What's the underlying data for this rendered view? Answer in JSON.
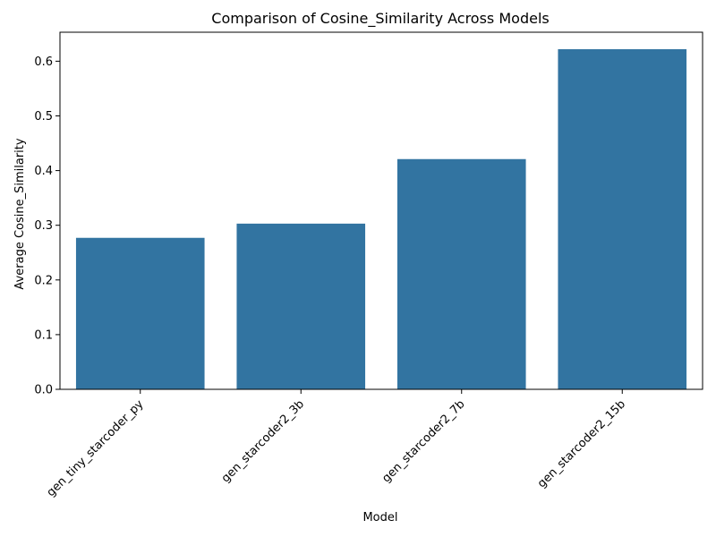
{
  "chart_data": {
    "type": "bar",
    "title": "Comparison of Cosine_Similarity Across Models",
    "xlabel": "Model",
    "ylabel": "Average Cosine_Similarity",
    "categories": [
      "gen_tiny_starcoder_py",
      "gen_starcoder2_3b",
      "gen_starcoder2_7b",
      "gen_starcoder2_15b"
    ],
    "values": [
      0.277,
      0.303,
      0.421,
      0.622
    ],
    "ylim": [
      0,
      0.653
    ],
    "yticks": [
      0.0,
      0.1,
      0.2,
      0.3,
      0.4,
      0.5,
      0.6
    ],
    "ytick_labels": [
      "0.0",
      "0.1",
      "0.2",
      "0.3",
      "0.4",
      "0.5",
      "0.6"
    ],
    "bar_color": "#3274a1",
    "grid": false,
    "legend": "none"
  }
}
